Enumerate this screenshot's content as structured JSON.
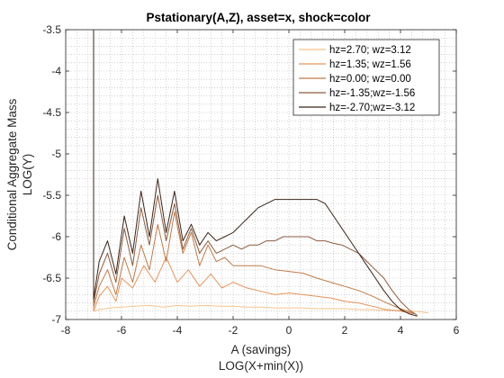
{
  "chart_data": {
    "type": "line",
    "title": "Pstationary(A,Z), asset=x, shock=color",
    "xlabel_line1": "A (savings)",
    "xlabel_line2": "LOG(X+min(X))",
    "ylabel_line1": "Conditional Aggregate Mass",
    "ylabel_line2": "LOG(Y)",
    "xlim": [
      -8,
      6
    ],
    "ylim": [
      -7,
      -3.5
    ],
    "xticks": [
      -8,
      -6,
      -4,
      -2,
      0,
      2,
      4,
      6
    ],
    "yticks": [
      -7,
      -6.5,
      -6,
      -5.5,
      -5,
      -4.5,
      -4,
      -3.5
    ],
    "grid": "dotted minor grid",
    "legend_position": "top-right",
    "series": [
      {
        "name": "hz=2.70; wz=3.12",
        "color": "#f5c48e",
        "x": [
          -7,
          -6.8,
          -6.4,
          -6,
          -5.5,
          -5,
          -4.5,
          -4,
          -3.5,
          -3,
          -2.5,
          -2,
          -1.5,
          -1,
          -0.5,
          0,
          0.5,
          1,
          1.5,
          2,
          2.5,
          3,
          3.5,
          4,
          4.5,
          5
        ],
        "y": [
          -6.9,
          -6.88,
          -6.86,
          -6.85,
          -6.84,
          -6.83,
          -6.85,
          -6.83,
          -6.84,
          -6.83,
          -6.84,
          -6.84,
          -6.85,
          -6.85,
          -6.86,
          -6.86,
          -6.86,
          -6.87,
          -6.87,
          -6.87,
          -6.88,
          -6.88,
          -6.89,
          -6.89,
          -6.9,
          -6.92
        ]
      },
      {
        "name": "hz=1.35; wz=1.56",
        "color": "#e8935a",
        "x": [
          -7,
          -6.8,
          -6.5,
          -6.2,
          -6,
          -5.6,
          -5.2,
          -4.8,
          -4.4,
          -4,
          -3.6,
          -3.2,
          -2.8,
          -2.4,
          -2,
          -1.5,
          -1,
          -0.5,
          0,
          0.5,
          1,
          1.5,
          2,
          2.5,
          3,
          3.5,
          4,
          4.5
        ],
        "y": [
          -6.9,
          -6.72,
          -6.6,
          -6.78,
          -6.5,
          -6.62,
          -6.35,
          -6.55,
          -6.25,
          -6.55,
          -6.4,
          -6.6,
          -6.45,
          -6.62,
          -6.55,
          -6.62,
          -6.66,
          -6.7,
          -6.68,
          -6.7,
          -6.72,
          -6.74,
          -6.78,
          -6.8,
          -6.84,
          -6.88,
          -6.9,
          -6.93
        ]
      },
      {
        "name": "hz=0.00; wz=0.00",
        "color": "#c07a47",
        "x": [
          -7,
          -6.8,
          -6.5,
          -6.2,
          -5.9,
          -5.6,
          -5.3,
          -5,
          -4.7,
          -4.4,
          -4.1,
          -3.8,
          -3.5,
          -3.2,
          -2.9,
          -2.6,
          -2.3,
          -2,
          -1.5,
          -1,
          -0.5,
          0,
          0.5,
          1,
          1.5,
          2,
          2.5,
          3,
          3.5,
          4,
          4.5
        ],
        "y": [
          -6.85,
          -6.6,
          -6.4,
          -6.7,
          -6.25,
          -6.55,
          -6.1,
          -6.4,
          -5.85,
          -6.3,
          -5.7,
          -6.2,
          -5.95,
          -6.35,
          -6.1,
          -6.3,
          -6.25,
          -6.35,
          -6.35,
          -6.35,
          -6.4,
          -6.42,
          -6.44,
          -6.5,
          -6.55,
          -6.6,
          -6.65,
          -6.72,
          -6.8,
          -6.87,
          -6.93
        ]
      },
      {
        "name": "hz=-1.35;wz=-1.56",
        "color": "#8c5a3c",
        "x": [
          -7,
          -6.8,
          -6.5,
          -6.2,
          -5.9,
          -5.6,
          -5.3,
          -5,
          -4.7,
          -4.4,
          -4.1,
          -3.8,
          -3.5,
          -3.2,
          -2.9,
          -2.6,
          -2.3,
          -2,
          -1.7,
          -1.4,
          -1.1,
          -0.8,
          -0.5,
          -0.2,
          0.1,
          0.4,
          0.7,
          1,
          1.3,
          1.6,
          1.9,
          2.2,
          2.5,
          2.8,
          3.1,
          3.4,
          3.7,
          4,
          4.3,
          4.6
        ],
        "y": [
          -6.8,
          -6.45,
          -6.2,
          -6.55,
          -5.9,
          -6.35,
          -5.65,
          -6.1,
          -5.5,
          -6.05,
          -5.6,
          -6.15,
          -5.9,
          -6.2,
          -6.05,
          -6.2,
          -6.15,
          -6.1,
          -6.15,
          -6.1,
          -6.1,
          -6.05,
          -6.05,
          -6.0,
          -6.0,
          -6.0,
          -6.0,
          -6.05,
          -6.05,
          -6.08,
          -6.1,
          -6.15,
          -6.2,
          -6.3,
          -6.4,
          -6.5,
          -6.65,
          -6.78,
          -6.88,
          -6.95
        ]
      },
      {
        "name": "hz=-2.70;wz=-3.12",
        "color": "#3a2418",
        "x": [
          -7,
          -6.8,
          -6.5,
          -6.2,
          -5.9,
          -5.6,
          -5.3,
          -5,
          -4.7,
          -4.4,
          -4.1,
          -3.8,
          -3.5,
          -3.2,
          -2.9,
          -2.6,
          -2.3,
          -2,
          -1.7,
          -1.4,
          -1.1,
          -0.8,
          -0.5,
          -0.2,
          0.1,
          0.4,
          0.7,
          1,
          1.3,
          1.6,
          1.9,
          2.2,
          2.5,
          2.8,
          3.1,
          3.4,
          3.7,
          4,
          4.3,
          4.6
        ],
        "y": [
          -6.75,
          -6.3,
          -6.05,
          -6.45,
          -5.75,
          -6.2,
          -5.45,
          -6.0,
          -5.3,
          -5.95,
          -5.45,
          -6.05,
          -5.85,
          -6.1,
          -5.95,
          -6.05,
          -6.0,
          -5.95,
          -5.85,
          -5.75,
          -5.65,
          -5.6,
          -5.55,
          -5.55,
          -5.55,
          -5.55,
          -5.55,
          -5.55,
          -5.6,
          -5.75,
          -5.9,
          -6.05,
          -6.2,
          -6.35,
          -6.5,
          -6.65,
          -6.78,
          -6.88,
          -6.93,
          -6.96
        ]
      }
    ]
  }
}
